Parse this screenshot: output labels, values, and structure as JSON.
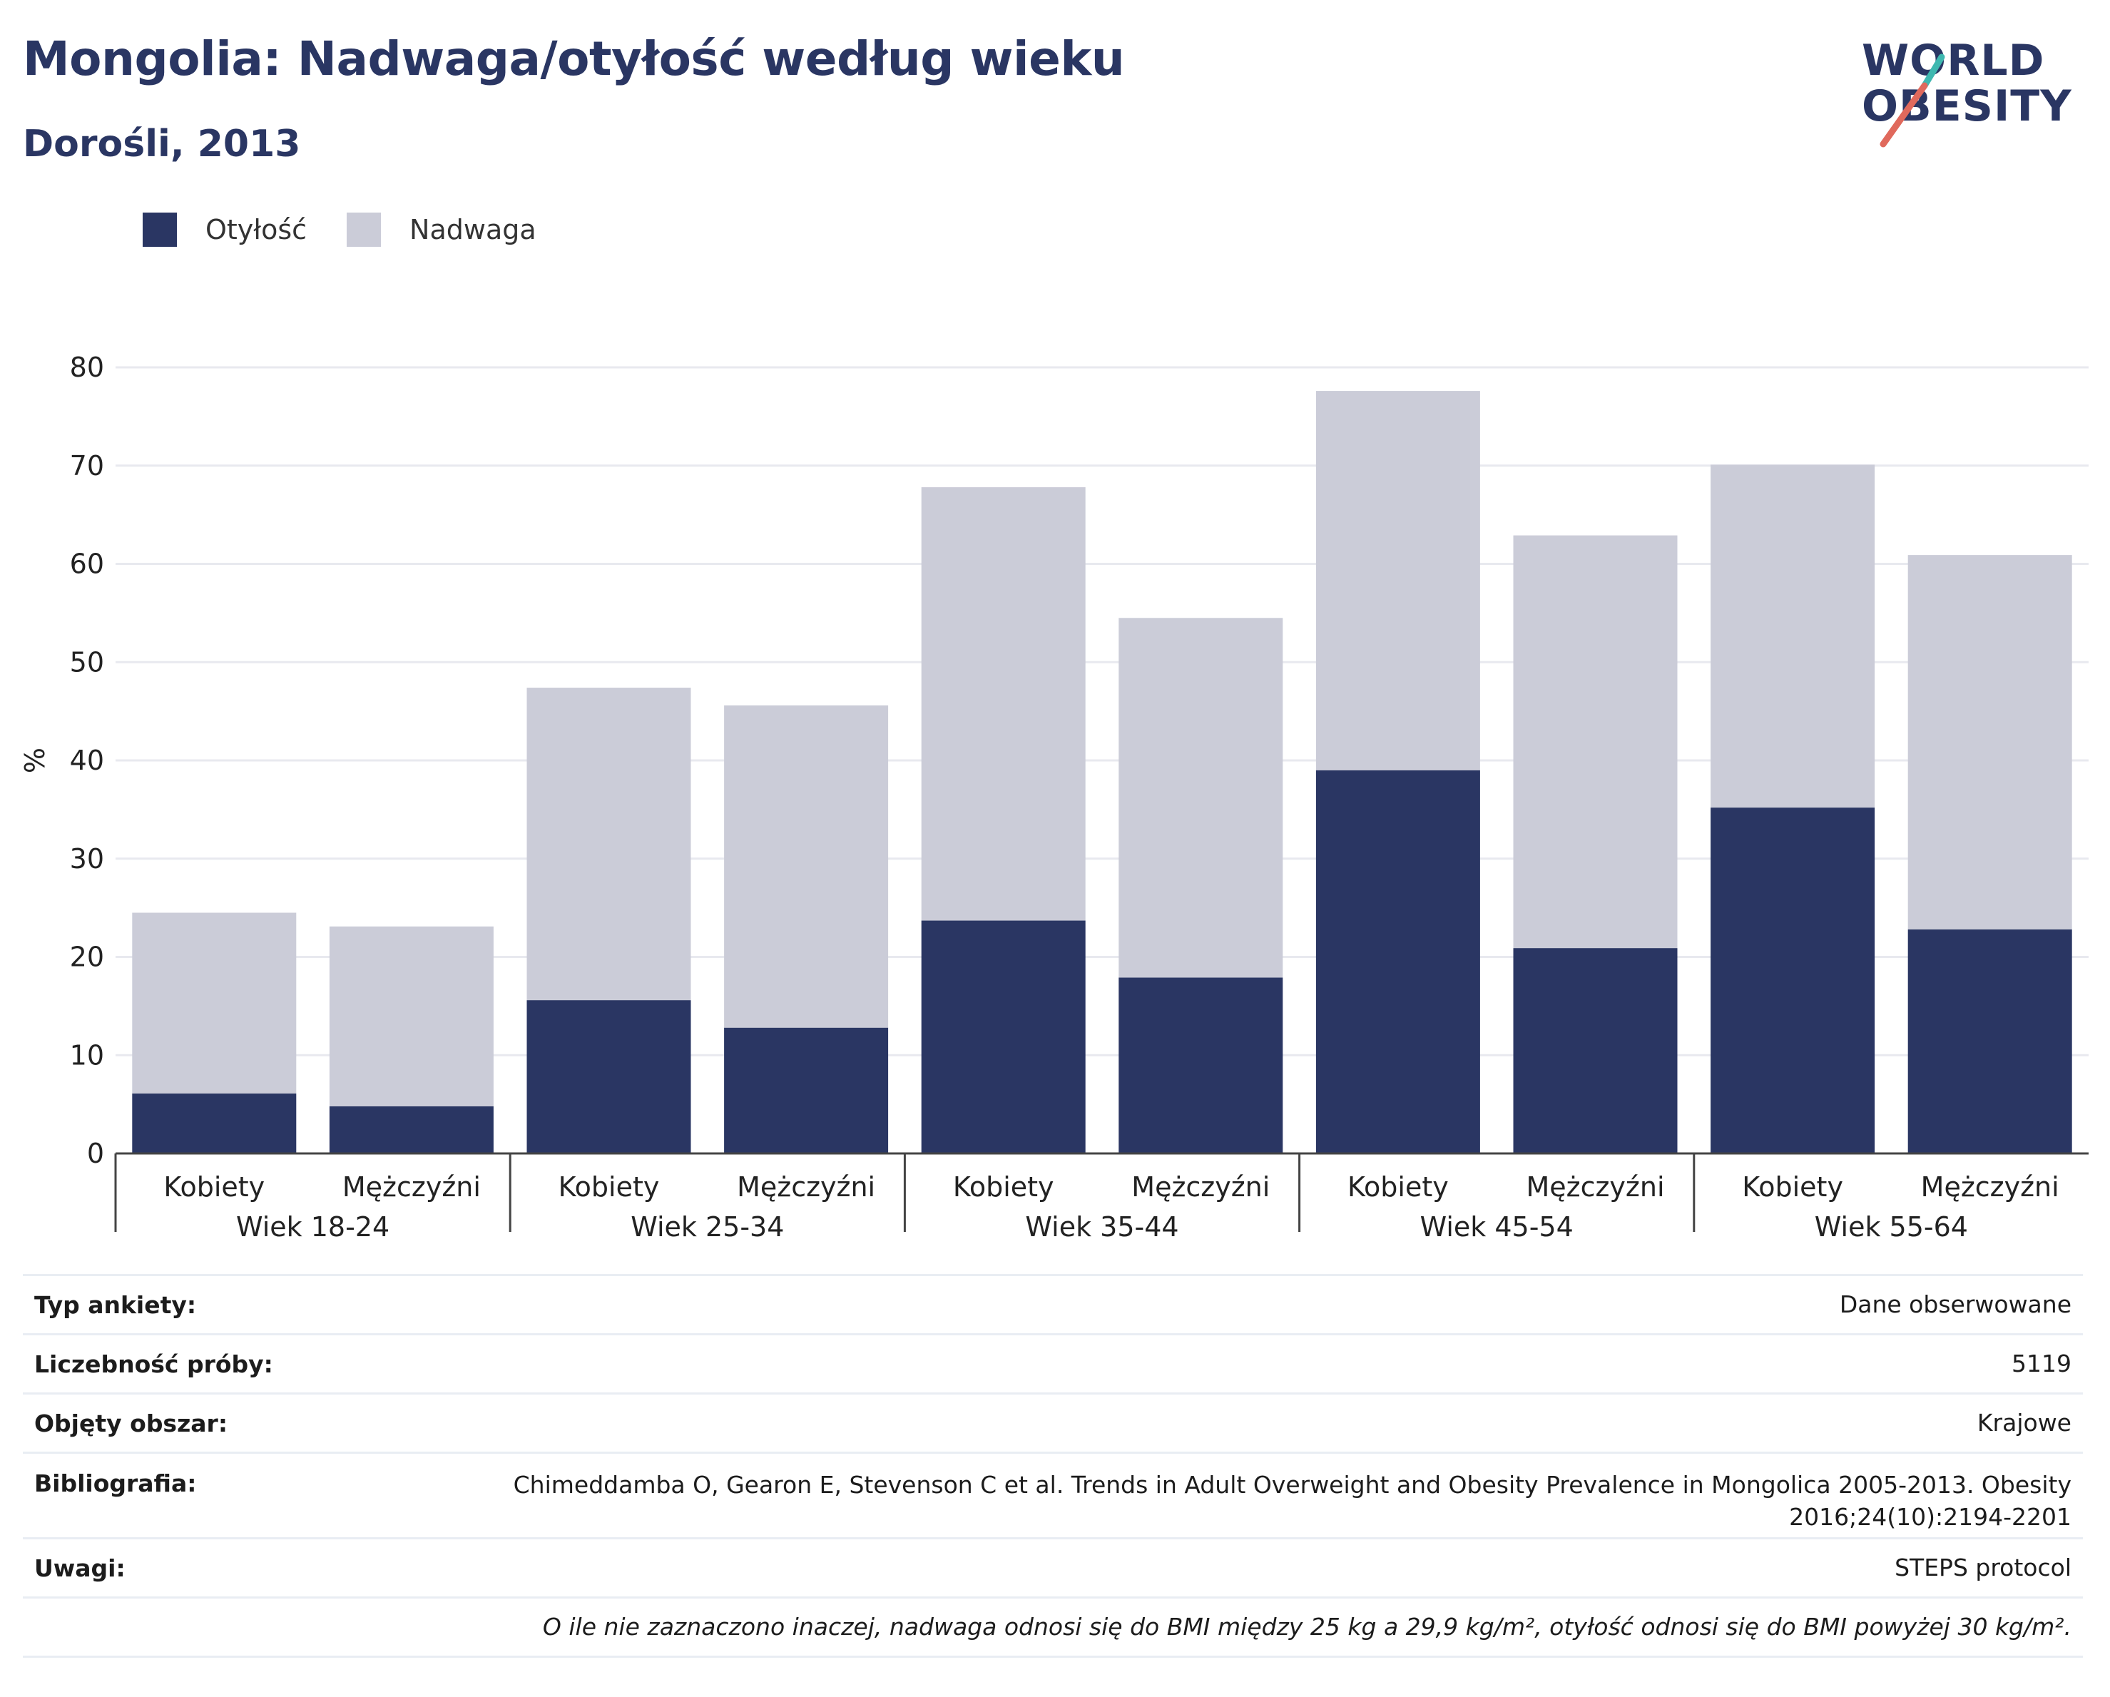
{
  "header": {
    "title": "Mongolia: Nadwaga/otyłość według wieku",
    "subtitle": "Dorośli, 2013",
    "logo_line1": "WORLD",
    "logo_line2": "OBESITY"
  },
  "legend": {
    "items": [
      {
        "label": "Otyłość",
        "color": "#2a3663"
      },
      {
        "label": "Nadwaga",
        "color": "#cbccd8"
      }
    ]
  },
  "chart_data": {
    "type": "bar",
    "stacked": true,
    "ylabel": "%",
    "ylim": [
      0,
      80
    ],
    "yticks": [
      0,
      10,
      20,
      30,
      40,
      50,
      60,
      70,
      80
    ],
    "grid": true,
    "legend_position": "top-left",
    "categories": [
      "Kobiety",
      "Mężczyźni",
      "Kobiety",
      "Mężczyźni",
      "Kobiety",
      "Mężczyźni",
      "Kobiety",
      "Mężczyźni",
      "Kobiety",
      "Mężczyźni"
    ],
    "groups": [
      "Wiek 18-24",
      "Wiek 25-34",
      "Wiek 35-44",
      "Wiek 45-54",
      "Wiek 55-64"
    ],
    "series": [
      {
        "name": "Otyłość",
        "color": "#2a3663",
        "values": [
          6.1,
          4.8,
          15.6,
          12.8,
          23.7,
          17.9,
          39.0,
          20.9,
          35.2,
          22.8
        ]
      },
      {
        "name": "Nadwaga",
        "color": "#cbccd8",
        "values": [
          18.4,
          18.3,
          31.8,
          32.8,
          44.1,
          36.6,
          38.6,
          42.0,
          34.9,
          38.1
        ]
      }
    ]
  },
  "info": {
    "rows": [
      {
        "key": "Typ ankiety:",
        "value": "Dane obserwowane"
      },
      {
        "key": "Liczebność próby:",
        "value": "5119"
      },
      {
        "key": "Objęty obszar:",
        "value": "Krajowe"
      },
      {
        "key": "Bibliografia:",
        "value": "Chimeddamba O, Gearon E, Stevenson C et al. Trends in Adult Overweight and Obesity Prevalence in Mongolica 2005-2013. Obesity 2016;24(10):2194-2201"
      },
      {
        "key": "Uwagi:",
        "value": "STEPS protocol"
      }
    ],
    "note": "O ile nie zaznaczono inaczej, nadwaga odnosi się do BMI między 25 kg a 29,9 kg/m², otyłość odnosi się do BMI powyżej 30 kg/m²."
  }
}
